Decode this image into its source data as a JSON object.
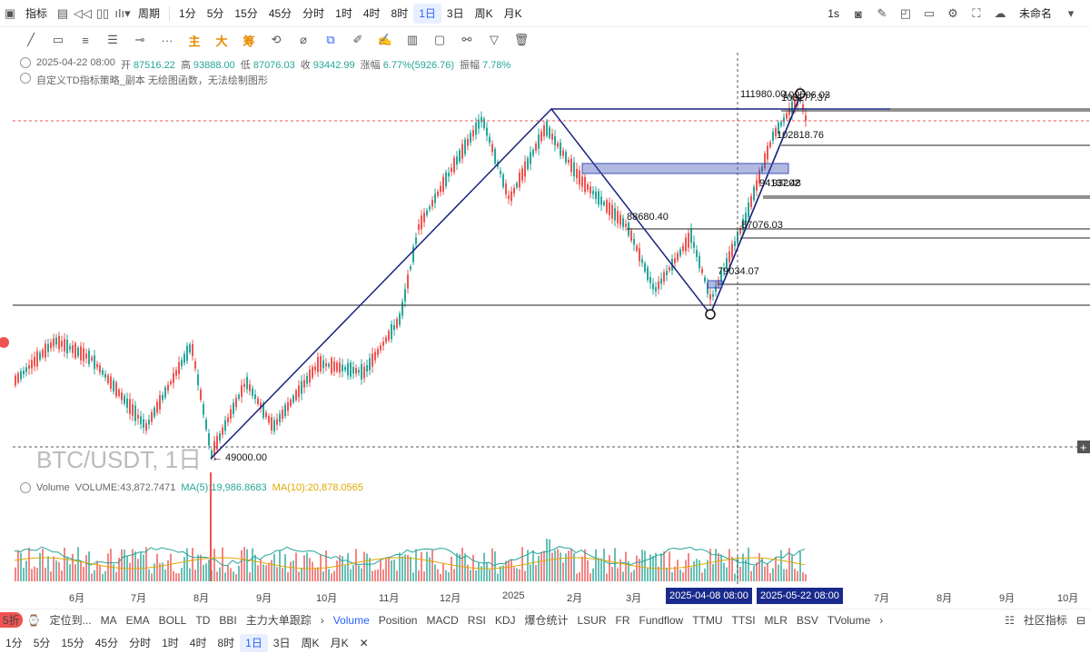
{
  "topbar": {
    "indicator_label": "指标",
    "period_label": "周期",
    "intervals": [
      "1分",
      "5分",
      "15分",
      "45分",
      "分时",
      "1时",
      "4时",
      "8时",
      "1日",
      "3日",
      "周K",
      "月K"
    ],
    "active_interval": "1日",
    "refresh_label": "1s",
    "layout_name": "未命名"
  },
  "drawing_tools": {
    "zhu": "主",
    "da": "大",
    "chou": "筹"
  },
  "ohlc": {
    "date": "2025-04-22 08:00",
    "open_label": "开",
    "open": "87516.22",
    "high_label": "高",
    "high": "93888.00",
    "low_label": "低",
    "low": "87076.03",
    "close_label": "收",
    "close": "93442.99",
    "change_label": "涨幅",
    "change": "6.77%(5926.76)",
    "amp_label": "振幅",
    "amp": "7.78%"
  },
  "strategy_line": "自定义TD指标策略_副本  无绘图函数，无法绘制图形",
  "symbol": "BTC/USDT, 1日",
  "price_labels": {
    "p111980": "111980.00",
    "p109506": "109506.03",
    "p108177": "108177.37",
    "p102818": "102818.76",
    "p94137": "94137.48",
    "p93202": "93202",
    "p88680": "88680.40",
    "p87076": "87076.03",
    "p79034": "79034.07",
    "p49000": "← 49000.00"
  },
  "volume": {
    "label": "Volume",
    "value": "VOLUME:43,872.7471",
    "ma5": "MA(5):19,986.8683",
    "ma10": "MA(10):20,878.0565",
    "ma5_color": "#26a69a",
    "ma10_color": "#e0a800"
  },
  "x_axis": {
    "ticks": [
      "6月",
      "7月",
      "8月",
      "9月",
      "10月",
      "11月",
      "12月",
      "2025",
      "2月",
      "3月",
      "7月",
      "8月",
      "9月",
      "10月"
    ],
    "highlight1": "2025-04-08 08:00",
    "highlight2": "2025-05-22 08:00"
  },
  "bottom_tabs": {
    "discount": "5折",
    "locate": "定位到...",
    "main": [
      "MA",
      "EMA",
      "BOLL",
      "TD",
      "BBI",
      "主力大单跟踪"
    ],
    "sub": [
      "Volume",
      "Position",
      "MACD",
      "RSI",
      "KDJ",
      "爆仓统计",
      "LSUR",
      "FR",
      "Fundflow",
      "TTMU",
      "TTSI",
      "MLR",
      "BSV",
      "TVolume"
    ],
    "active_sub": "Volume",
    "community": "社区指标"
  },
  "bottom_intervals": [
    "1分",
    "5分",
    "15分",
    "45分",
    "分时",
    "1时",
    "4时",
    "8时",
    "1日",
    "3日",
    "周K",
    "月K"
  ],
  "colors": {
    "up": "#26a69a",
    "down": "#ef5350",
    "pattern": "#1a237e",
    "box": "#3f51b5"
  }
}
